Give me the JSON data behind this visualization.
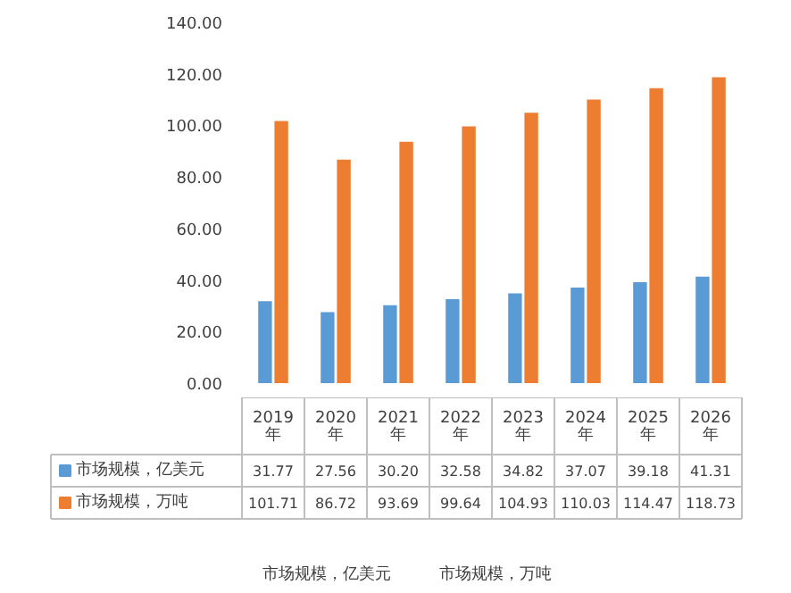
{
  "chart_data": {
    "type": "bar",
    "categories": [
      "2019\n年",
      "2020\n年",
      "2021\n年",
      "2022\n年",
      "2023\n年",
      "2024\n年",
      "2025\n年",
      "2026\n年"
    ],
    "series": [
      {
        "name": "市场规模，亿美元",
        "color": "#5b9bd5",
        "values": [
          31.77,
          27.56,
          30.2,
          32.58,
          34.82,
          37.07,
          39.18,
          41.31
        ],
        "value_labels": [
          "31.77",
          "27.56",
          "30.20",
          "32.58",
          "34.82",
          "37.07",
          "39.18",
          "41.31"
        ]
      },
      {
        "name": "市场规模，万吨",
        "color": "#ed7d31",
        "values": [
          101.71,
          86.72,
          93.69,
          99.64,
          104.93,
          110.03,
          114.47,
          118.73
        ],
        "value_labels": [
          "101.71",
          "86.72",
          "93.69",
          "99.64",
          "104.93",
          "110.03",
          "114.47",
          "118.73"
        ]
      }
    ],
    "ylim": [
      0,
      140
    ],
    "yticks": [
      {
        "value": 0,
        "label": "0.00"
      },
      {
        "value": 20,
        "label": "20.00"
      },
      {
        "value": 40,
        "label": "40.00"
      },
      {
        "value": 60,
        "label": "60.00"
      },
      {
        "value": 80,
        "label": "80.00"
      },
      {
        "value": 100,
        "label": "100.00"
      },
      {
        "value": 120,
        "label": "120.00"
      },
      {
        "value": 140,
        "label": "140.00"
      }
    ],
    "grid": false,
    "legend": "bottom"
  }
}
